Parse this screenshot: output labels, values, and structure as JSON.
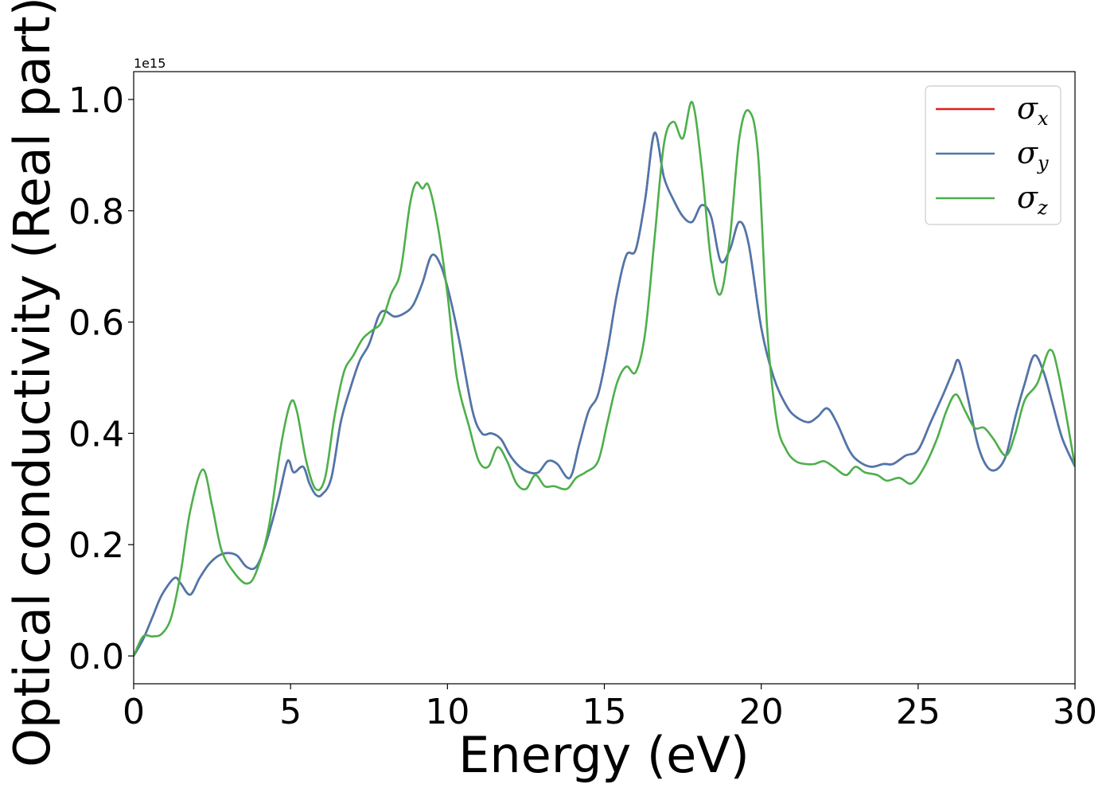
{
  "chart_data": {
    "type": "line",
    "title": "",
    "xlabel": "Energy (eV)",
    "ylabel": "Optical conductivity (Real part)",
    "y_offset_text": "1e15",
    "xlim": [
      0,
      30
    ],
    "ylim": [
      -0.05,
      1.05
    ],
    "xticks": [
      0,
      5,
      10,
      15,
      20,
      25,
      30
    ],
    "xtick_labels": [
      "0",
      "5",
      "10",
      "15",
      "20",
      "25",
      "30"
    ],
    "yticks": [
      0.0,
      0.2,
      0.4,
      0.6,
      0.8,
      1.0
    ],
    "ytick_labels": [
      "0.0",
      "0.2",
      "0.4",
      "0.6",
      "0.8",
      "1.0"
    ],
    "grid": false,
    "legend_position": "top-right",
    "series": [
      {
        "name": "σx",
        "symbol": "σ",
        "subscript": "x",
        "color": "#e41a1c",
        "points": [
          [
            0,
            0
          ],
          [
            0.3,
            0.03
          ],
          [
            0.6,
            0.07
          ],
          [
            0.9,
            0.11
          ],
          [
            1.3,
            0.14
          ],
          [
            1.5,
            0.13
          ],
          [
            1.8,
            0.11
          ],
          [
            2.1,
            0.14
          ],
          [
            2.4,
            0.165
          ],
          [
            2.7,
            0.18
          ],
          [
            3.0,
            0.185
          ],
          [
            3.3,
            0.18
          ],
          [
            3.6,
            0.16
          ],
          [
            3.9,
            0.16
          ],
          [
            4.2,
            0.2
          ],
          [
            4.6,
            0.28
          ],
          [
            4.9,
            0.35
          ],
          [
            5.1,
            0.33
          ],
          [
            5.4,
            0.34
          ],
          [
            5.6,
            0.31
          ],
          [
            5.8,
            0.29
          ],
          [
            6.0,
            0.29
          ],
          [
            6.3,
            0.32
          ],
          [
            6.6,
            0.42
          ],
          [
            6.9,
            0.48
          ],
          [
            7.2,
            0.53
          ],
          [
            7.5,
            0.56
          ],
          [
            7.8,
            0.61
          ],
          [
            8.0,
            0.62
          ],
          [
            8.3,
            0.61
          ],
          [
            8.6,
            0.615
          ],
          [
            8.9,
            0.63
          ],
          [
            9.2,
            0.67
          ],
          [
            9.5,
            0.72
          ],
          [
            9.8,
            0.7
          ],
          [
            10.1,
            0.64
          ],
          [
            10.4,
            0.56
          ],
          [
            10.8,
            0.44
          ],
          [
            11.1,
            0.4
          ],
          [
            11.4,
            0.4
          ],
          [
            11.7,
            0.39
          ],
          [
            12.0,
            0.36
          ],
          [
            12.3,
            0.34
          ],
          [
            12.6,
            0.33
          ],
          [
            12.9,
            0.33
          ],
          [
            13.2,
            0.35
          ],
          [
            13.5,
            0.345
          ],
          [
            13.9,
            0.32
          ],
          [
            14.2,
            0.38
          ],
          [
            14.5,
            0.44
          ],
          [
            14.8,
            0.47
          ],
          [
            15.1,
            0.55
          ],
          [
            15.4,
            0.65
          ],
          [
            15.7,
            0.72
          ],
          [
            16.0,
            0.73
          ],
          [
            16.3,
            0.82
          ],
          [
            16.6,
            0.94
          ],
          [
            16.9,
            0.86
          ],
          [
            17.2,
            0.82
          ],
          [
            17.5,
            0.79
          ],
          [
            17.8,
            0.78
          ],
          [
            18.1,
            0.81
          ],
          [
            18.4,
            0.79
          ],
          [
            18.7,
            0.71
          ],
          [
            19.0,
            0.73
          ],
          [
            19.3,
            0.78
          ],
          [
            19.6,
            0.74
          ],
          [
            20.0,
            0.59
          ],
          [
            20.4,
            0.5
          ],
          [
            20.8,
            0.45
          ],
          [
            21.1,
            0.43
          ],
          [
            21.5,
            0.42
          ],
          [
            21.8,
            0.43
          ],
          [
            22.1,
            0.445
          ],
          [
            22.4,
            0.42
          ],
          [
            22.8,
            0.37
          ],
          [
            23.1,
            0.35
          ],
          [
            23.5,
            0.34
          ],
          [
            23.9,
            0.345
          ],
          [
            24.2,
            0.345
          ],
          [
            24.6,
            0.36
          ],
          [
            25.0,
            0.37
          ],
          [
            25.4,
            0.42
          ],
          [
            25.8,
            0.47
          ],
          [
            26.1,
            0.51
          ],
          [
            26.3,
            0.53
          ],
          [
            26.6,
            0.46
          ],
          [
            26.9,
            0.38
          ],
          [
            27.2,
            0.34
          ],
          [
            27.5,
            0.335
          ],
          [
            27.8,
            0.36
          ],
          [
            28.1,
            0.43
          ],
          [
            28.4,
            0.49
          ],
          [
            28.7,
            0.54
          ],
          [
            29.0,
            0.51
          ],
          [
            29.3,
            0.45
          ],
          [
            29.6,
            0.39
          ],
          [
            30,
            0.34
          ]
        ]
      },
      {
        "name": "σy",
        "symbol": "σ",
        "subscript": "y",
        "color": "#4a78ae",
        "points": [
          [
            0,
            0
          ],
          [
            0.3,
            0.03
          ],
          [
            0.6,
            0.07
          ],
          [
            0.9,
            0.11
          ],
          [
            1.3,
            0.14
          ],
          [
            1.5,
            0.13
          ],
          [
            1.8,
            0.11
          ],
          [
            2.1,
            0.14
          ],
          [
            2.4,
            0.165
          ],
          [
            2.7,
            0.18
          ],
          [
            3.0,
            0.185
          ],
          [
            3.3,
            0.18
          ],
          [
            3.6,
            0.16
          ],
          [
            3.9,
            0.16
          ],
          [
            4.2,
            0.2
          ],
          [
            4.6,
            0.28
          ],
          [
            4.9,
            0.35
          ],
          [
            5.1,
            0.33
          ],
          [
            5.4,
            0.34
          ],
          [
            5.6,
            0.31
          ],
          [
            5.8,
            0.29
          ],
          [
            6.0,
            0.29
          ],
          [
            6.3,
            0.32
          ],
          [
            6.6,
            0.42
          ],
          [
            6.9,
            0.48
          ],
          [
            7.2,
            0.53
          ],
          [
            7.5,
            0.56
          ],
          [
            7.8,
            0.61
          ],
          [
            8.0,
            0.62
          ],
          [
            8.3,
            0.61
          ],
          [
            8.6,
            0.615
          ],
          [
            8.9,
            0.63
          ],
          [
            9.2,
            0.67
          ],
          [
            9.5,
            0.72
          ],
          [
            9.8,
            0.7
          ],
          [
            10.1,
            0.64
          ],
          [
            10.4,
            0.56
          ],
          [
            10.8,
            0.44
          ],
          [
            11.1,
            0.4
          ],
          [
            11.4,
            0.4
          ],
          [
            11.7,
            0.39
          ],
          [
            12.0,
            0.36
          ],
          [
            12.3,
            0.34
          ],
          [
            12.6,
            0.33
          ],
          [
            12.9,
            0.33
          ],
          [
            13.2,
            0.35
          ],
          [
            13.5,
            0.345
          ],
          [
            13.9,
            0.32
          ],
          [
            14.2,
            0.38
          ],
          [
            14.5,
            0.44
          ],
          [
            14.8,
            0.47
          ],
          [
            15.1,
            0.55
          ],
          [
            15.4,
            0.65
          ],
          [
            15.7,
            0.72
          ],
          [
            16.0,
            0.73
          ],
          [
            16.3,
            0.82
          ],
          [
            16.6,
            0.94
          ],
          [
            16.9,
            0.86
          ],
          [
            17.2,
            0.82
          ],
          [
            17.5,
            0.79
          ],
          [
            17.8,
            0.78
          ],
          [
            18.1,
            0.81
          ],
          [
            18.4,
            0.79
          ],
          [
            18.7,
            0.71
          ],
          [
            19.0,
            0.73
          ],
          [
            19.3,
            0.78
          ],
          [
            19.6,
            0.74
          ],
          [
            20.0,
            0.59
          ],
          [
            20.4,
            0.5
          ],
          [
            20.8,
            0.45
          ],
          [
            21.1,
            0.43
          ],
          [
            21.5,
            0.42
          ],
          [
            21.8,
            0.43
          ],
          [
            22.1,
            0.445
          ],
          [
            22.4,
            0.42
          ],
          [
            22.8,
            0.37
          ],
          [
            23.1,
            0.35
          ],
          [
            23.5,
            0.34
          ],
          [
            23.9,
            0.345
          ],
          [
            24.2,
            0.345
          ],
          [
            24.6,
            0.36
          ],
          [
            25.0,
            0.37
          ],
          [
            25.4,
            0.42
          ],
          [
            25.8,
            0.47
          ],
          [
            26.1,
            0.51
          ],
          [
            26.3,
            0.53
          ],
          [
            26.6,
            0.46
          ],
          [
            26.9,
            0.38
          ],
          [
            27.2,
            0.34
          ],
          [
            27.5,
            0.335
          ],
          [
            27.8,
            0.36
          ],
          [
            28.1,
            0.43
          ],
          [
            28.4,
            0.49
          ],
          [
            28.7,
            0.54
          ],
          [
            29.0,
            0.51
          ],
          [
            29.3,
            0.45
          ],
          [
            29.6,
            0.39
          ],
          [
            30,
            0.34
          ]
        ]
      },
      {
        "name": "σz",
        "symbol": "σ",
        "subscript": "z",
        "color": "#4daf4a",
        "points": [
          [
            0,
            0
          ],
          [
            0.3,
            0.035
          ],
          [
            0.6,
            0.035
          ],
          [
            0.9,
            0.04
          ],
          [
            1.2,
            0.07
          ],
          [
            1.5,
            0.15
          ],
          [
            1.8,
            0.26
          ],
          [
            2.2,
            0.335
          ],
          [
            2.5,
            0.27
          ],
          [
            2.8,
            0.19
          ],
          [
            3.2,
            0.15
          ],
          [
            3.6,
            0.13
          ],
          [
            3.9,
            0.15
          ],
          [
            4.3,
            0.23
          ],
          [
            4.7,
            0.38
          ],
          [
            5.0,
            0.455
          ],
          [
            5.2,
            0.44
          ],
          [
            5.5,
            0.35
          ],
          [
            5.8,
            0.3
          ],
          [
            6.1,
            0.32
          ],
          [
            6.4,
            0.43
          ],
          [
            6.7,
            0.51
          ],
          [
            7.0,
            0.54
          ],
          [
            7.3,
            0.57
          ],
          [
            7.6,
            0.585
          ],
          [
            7.9,
            0.6
          ],
          [
            8.2,
            0.65
          ],
          [
            8.5,
            0.69
          ],
          [
            8.8,
            0.81
          ],
          [
            9.0,
            0.85
          ],
          [
            9.2,
            0.84
          ],
          [
            9.4,
            0.845
          ],
          [
            9.7,
            0.77
          ],
          [
            10.0,
            0.65
          ],
          [
            10.3,
            0.5
          ],
          [
            10.7,
            0.41
          ],
          [
            11.0,
            0.35
          ],
          [
            11.3,
            0.34
          ],
          [
            11.6,
            0.375
          ],
          [
            11.9,
            0.35
          ],
          [
            12.2,
            0.31
          ],
          [
            12.5,
            0.3
          ],
          [
            12.8,
            0.325
          ],
          [
            13.1,
            0.305
          ],
          [
            13.4,
            0.305
          ],
          [
            13.8,
            0.3
          ],
          [
            14.1,
            0.32
          ],
          [
            14.4,
            0.33
          ],
          [
            14.8,
            0.35
          ],
          [
            15.1,
            0.42
          ],
          [
            15.4,
            0.49
          ],
          [
            15.7,
            0.52
          ],
          [
            16.0,
            0.51
          ],
          [
            16.3,
            0.58
          ],
          [
            16.6,
            0.75
          ],
          [
            16.9,
            0.92
          ],
          [
            17.2,
            0.96
          ],
          [
            17.5,
            0.93
          ],
          [
            17.8,
            0.995
          ],
          [
            18.1,
            0.88
          ],
          [
            18.4,
            0.71
          ],
          [
            18.7,
            0.65
          ],
          [
            19.0,
            0.75
          ],
          [
            19.3,
            0.93
          ],
          [
            19.6,
            0.98
          ],
          [
            19.9,
            0.9
          ],
          [
            20.2,
            0.58
          ],
          [
            20.5,
            0.42
          ],
          [
            20.8,
            0.37
          ],
          [
            21.1,
            0.35
          ],
          [
            21.4,
            0.345
          ],
          [
            21.7,
            0.345
          ],
          [
            22.0,
            0.35
          ],
          [
            22.3,
            0.34
          ],
          [
            22.7,
            0.325
          ],
          [
            23.0,
            0.34
          ],
          [
            23.3,
            0.33
          ],
          [
            23.7,
            0.325
          ],
          [
            24.0,
            0.315
          ],
          [
            24.4,
            0.32
          ],
          [
            24.8,
            0.31
          ],
          [
            25.2,
            0.34
          ],
          [
            25.6,
            0.39
          ],
          [
            25.9,
            0.44
          ],
          [
            26.2,
            0.47
          ],
          [
            26.5,
            0.44
          ],
          [
            26.8,
            0.41
          ],
          [
            27.1,
            0.41
          ],
          [
            27.4,
            0.39
          ],
          [
            27.8,
            0.36
          ],
          [
            28.1,
            0.4
          ],
          [
            28.4,
            0.46
          ],
          [
            28.8,
            0.49
          ],
          [
            29.2,
            0.55
          ],
          [
            29.5,
            0.5
          ],
          [
            30,
            0.34
          ]
        ]
      }
    ]
  }
}
